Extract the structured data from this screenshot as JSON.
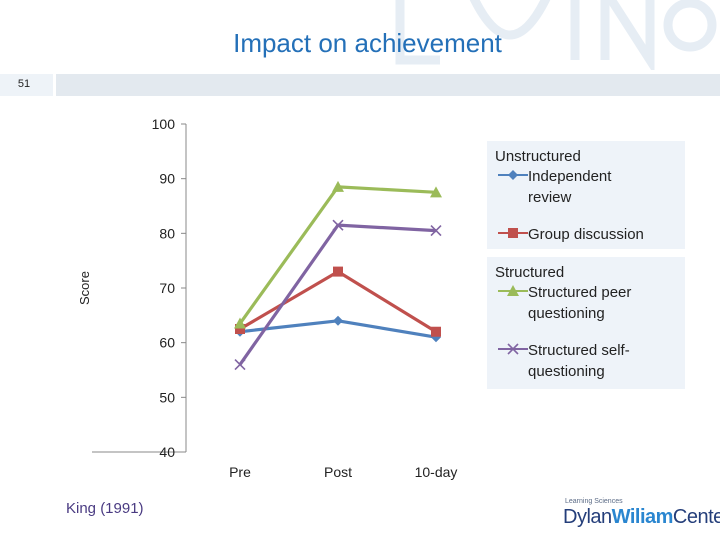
{
  "slide": {
    "title": "Impact on achievement",
    "number": "51",
    "citation": "King (1991)",
    "brand": {
      "tagline": "Learning Sciences",
      "name_part1": "Dylan",
      "name_part2": "Wiliam",
      "name_part3": "Center"
    }
  },
  "chart_data": {
    "type": "line",
    "title": "",
    "ylabel": "Score",
    "xlabel": "",
    "categories": [
      "Pre",
      "Post",
      "10-day"
    ],
    "ylim": [
      40,
      100
    ],
    "yticks": [
      40,
      50,
      60,
      70,
      80,
      90,
      100
    ],
    "grid": false,
    "legend_position": "right",
    "legend_groups": [
      {
        "label": "Unstructured",
        "series": [
          "Independent review",
          "Group discussion"
        ]
      },
      {
        "label": "Structured",
        "series": [
          "Structured peer questioning",
          "Structured self-questioning"
        ]
      }
    ],
    "series": [
      {
        "name": "Independent review",
        "values": [
          62,
          64,
          61
        ],
        "color": "#4f81bd",
        "marker": "diamond"
      },
      {
        "name": "Group discussion",
        "values": [
          62.5,
          73,
          62
        ],
        "color": "#c0504d",
        "marker": "square"
      },
      {
        "name": "Structured peer questioning",
        "values": [
          63.5,
          88.5,
          87.5
        ],
        "color": "#9bbb59",
        "marker": "triangle"
      },
      {
        "name": "Structured self-questioning",
        "values": [
          56,
          81.5,
          80.5
        ],
        "color": "#8064a2",
        "marker": "x"
      }
    ]
  }
}
